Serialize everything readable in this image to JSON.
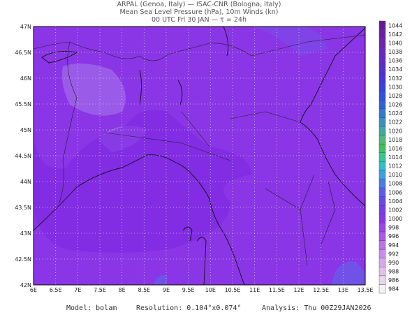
{
  "header": {
    "line1": "ARPAL (Genoa, Italy)  —  ISAC-CNR (Bologna, Italy)",
    "line2": "Mean Sea Level Pressure (hPa), 10m Winds (kn)",
    "line3": "00 UTC Fri 30 JAN  —  τ = 24h"
  },
  "map": {
    "lonlim": [
      6,
      13.5
    ],
    "latlim": [
      42,
      47
    ],
    "lonticks": [
      {
        "value": 6,
        "label": "6E"
      },
      {
        "value": 6.5,
        "label": "6.5E"
      },
      {
        "value": 7,
        "label": "7E"
      },
      {
        "value": 7.5,
        "label": "7.5E"
      },
      {
        "value": 8,
        "label": "8E"
      },
      {
        "value": 8.5,
        "label": "8.5E"
      },
      {
        "value": 9,
        "label": "9E"
      },
      {
        "value": 9.5,
        "label": "9.5E"
      },
      {
        "value": 10,
        "label": "10E"
      },
      {
        "value": 10.5,
        "label": "10.5E"
      },
      {
        "value": 11,
        "label": "11E"
      },
      {
        "value": 11.5,
        "label": "11.5E"
      },
      {
        "value": 12,
        "label": "12E"
      },
      {
        "value": 12.5,
        "label": "12.5E"
      },
      {
        "value": 13,
        "label": "13E"
      },
      {
        "value": 13.5,
        "label": "13.5E"
      }
    ],
    "latticks": [
      {
        "value": 42,
        "label": "42N"
      },
      {
        "value": 42.5,
        "label": "42.5N"
      },
      {
        "value": 43,
        "label": "43N"
      },
      {
        "value": 43.5,
        "label": "43.5N"
      },
      {
        "value": 44,
        "label": "44N"
      },
      {
        "value": 44.5,
        "label": "44.5N"
      },
      {
        "value": 45,
        "label": "45N"
      },
      {
        "value": 45.5,
        "label": "45.5N"
      },
      {
        "value": 46,
        "label": "46N"
      },
      {
        "value": 46.5,
        "label": "46.5N"
      },
      {
        "value": 47,
        "label": "47N"
      }
    ]
  },
  "colorbar": {
    "levels": [
      984,
      986,
      988,
      990,
      992,
      994,
      996,
      998,
      1000,
      1002,
      1004,
      1006,
      1008,
      1010,
      1012,
      1014,
      1016,
      1018,
      1020,
      1022,
      1024,
      1026,
      1028,
      1030,
      1032,
      1034,
      1036,
      1038,
      1040,
      1042,
      1044
    ],
    "colors": [
      "#f2f2f2",
      "#e9d6ec",
      "#e0c0ea",
      "#d6a8ea",
      "#c98ee9",
      "#bb74e8",
      "#a95ce6",
      "#9a48e6",
      "#8a36e4",
      "#7a3ae6",
      "#6a48e8",
      "#5a5ee8",
      "#4a7ae6",
      "#3aa0e0",
      "#30c0c8",
      "#34c890",
      "#40c060",
      "#50b87a",
      "#40a8a0",
      "#3890c0",
      "#3078d0",
      "#2e62d8",
      "#3250dc",
      "#3a40dc",
      "#4836d8",
      "#5630d0",
      "#622cc6",
      "#6a28bc",
      "#6e22b0",
      "#6c1ea4",
      "#661a98"
    ]
  },
  "footer": {
    "model": "Model: bolam",
    "resolution": "Resolution: 0.104°x0.074°",
    "analysis": "Analysis: Thu 00Z29JAN2026"
  }
}
